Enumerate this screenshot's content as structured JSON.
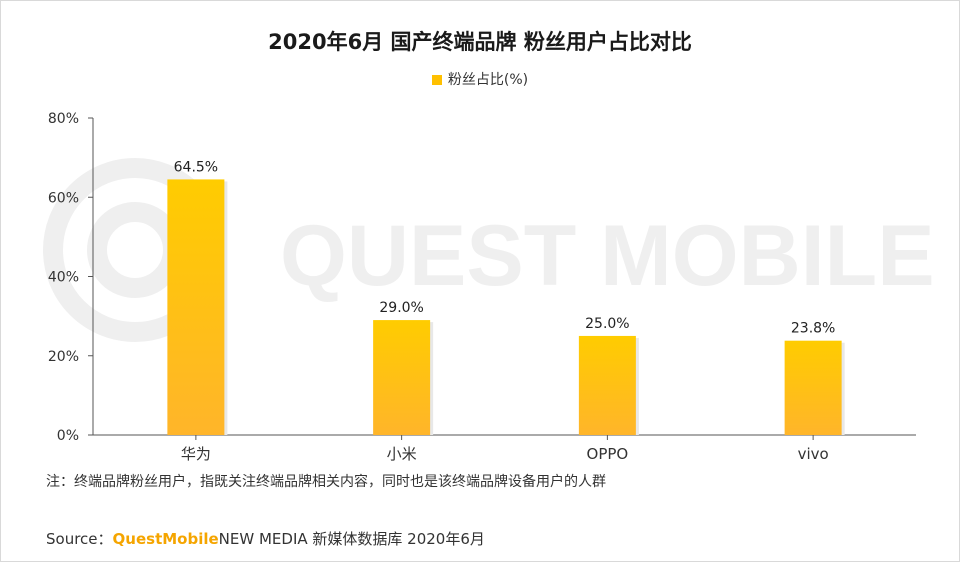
{
  "title": "2020年6月 国产终端品牌 粉丝用户占比对比",
  "watermark": "QUEST MOBILE",
  "note": "注：终端品牌粉丝用户，指既关注终端品牌相关内容，同时也是该终端品牌设备用户的人群",
  "source": {
    "prefix": "Source：",
    "brand": "QuestMobile",
    "rest": "NEW MEDIA 新媒体数据库 2020年6月"
  },
  "colors": {
    "bar_top": "#ffcc00",
    "bar_bottom": "#ffb52a",
    "axis": "#555555",
    "watermark": "#efefef"
  },
  "chart_data": {
    "type": "bar",
    "categories": [
      "华为",
      "小米",
      "OPPO",
      "vivo"
    ],
    "series": [
      {
        "name": "粉丝占比(%)",
        "values": [
          64.5,
          29.0,
          25.0,
          23.8
        ]
      }
    ],
    "data_labels": [
      "64.5%",
      "29.0%",
      "25.0%",
      "23.8%"
    ],
    "yticks": [
      "0%",
      "20%",
      "40%",
      "60%",
      "80%"
    ],
    "ylim": [
      0,
      80
    ],
    "grid": false,
    "legend_position": "top-center"
  }
}
